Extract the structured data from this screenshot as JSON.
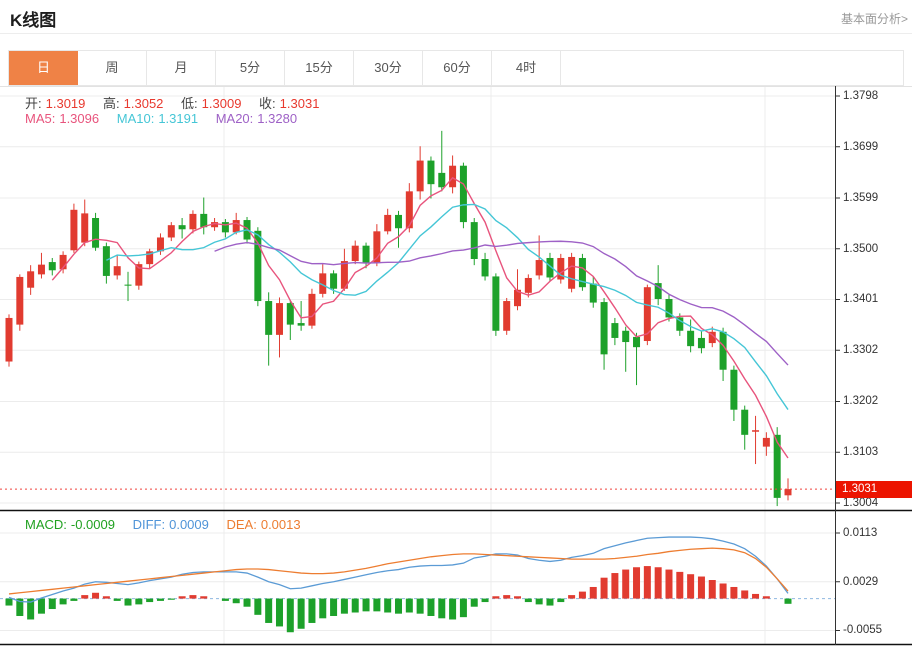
{
  "header": {
    "title": "K线图",
    "link_label": "基本面分析>"
  },
  "tabs": {
    "items": [
      "日",
      "周",
      "月",
      "5分",
      "15分",
      "30分",
      "60分",
      "4时"
    ],
    "active_index": 0
  },
  "kline_legend": {
    "open_label": "开:",
    "open_value": "1.3019",
    "high_label": "高:",
    "high_value": "1.3052",
    "low_label": "低:",
    "low_value": "1.3009",
    "close_label": "收:",
    "close_value": "1.3031"
  },
  "ma_legend": {
    "ma5_label": "MA5:",
    "ma5_value": "1.3096",
    "ma10_label": "MA10:",
    "ma10_value": "1.3191",
    "ma20_label": "MA20:",
    "ma20_value": "1.3280"
  },
  "macd_legend": {
    "macd_label": "MACD:",
    "macd_value": "-0.0009",
    "diff_label": "DIFF:",
    "diff_value": "0.0009",
    "dea_label": "DEA:",
    "dea_value": "0.0013"
  },
  "price_axis": {
    "tick_labels": [
      "1.3798",
      "1.3699",
      "1.3599",
      "1.3500",
      "1.3401",
      "1.3302",
      "1.3202",
      "1.3103",
      "1.3004"
    ],
    "current_price_label": "1.3031"
  },
  "macd_axis": {
    "tick_labels": [
      "0.0113",
      "0.0029",
      "-0.0055"
    ]
  },
  "colors": {
    "up": "#e13b30",
    "down": "#1da12a",
    "ma5": "#e8547d",
    "ma10": "#45c6d6",
    "ma20": "#9e61c6",
    "diff": "#5b9bd5",
    "dea": "#ed7d31",
    "accent_tab": "#ef8246",
    "price_badge": "#ec1400",
    "dotted_line": "#f0433e",
    "grid": "#ececec",
    "axis": "#333333",
    "separator": "#111111",
    "zero_dash": "#8fb8e0"
  },
  "chart_data": [
    {
      "type": "candlestick",
      "title": "K线图 (日K)",
      "ylabel": "price",
      "ylim": [
        1.2988,
        1.382
      ],
      "y_ticks": [
        1.3798,
        1.3699,
        1.3599,
        1.35,
        1.3401,
        1.3302,
        1.3202,
        1.3103,
        1.3004
      ],
      "current_price": 1.3031,
      "ma_periods": [
        5,
        10,
        20
      ],
      "last_ohlc": {
        "open": 1.3019,
        "high": 1.3052,
        "low": 1.3009,
        "close": 1.3031
      },
      "ma_last": {
        "ma5": 1.3096,
        "ma10": 1.3191,
        "ma20": 1.328
      },
      "candles": [
        [
          1.328,
          1.3372,
          1.327,
          1.3365
        ],
        [
          1.3352,
          1.345,
          1.334,
          1.3445
        ],
        [
          1.3424,
          1.3468,
          1.341,
          1.3456
        ],
        [
          1.345,
          1.3492,
          1.3442,
          1.3469
        ],
        [
          1.3474,
          1.3482,
          1.3448,
          1.3458
        ],
        [
          1.346,
          1.3495,
          1.3452,
          1.3488
        ],
        [
          1.3497,
          1.3588,
          1.3492,
          1.3576
        ],
        [
          1.3512,
          1.3596,
          1.3505,
          1.3569
        ],
        [
          1.356,
          1.357,
          1.3496,
          1.3502
        ],
        [
          1.3505,
          1.3512,
          1.3432,
          1.3447
        ],
        [
          1.3448,
          1.3488,
          1.344,
          1.3466
        ],
        [
          1.343,
          1.3455,
          1.3398,
          1.3428
        ],
        [
          1.3428,
          1.3475,
          1.342,
          1.347
        ],
        [
          1.347,
          1.35,
          1.3462,
          1.3495
        ],
        [
          1.3495,
          1.353,
          1.3488,
          1.3522
        ],
        [
          1.3522,
          1.3552,
          1.3515,
          1.3546
        ],
        [
          1.3546,
          1.356,
          1.352,
          1.3538
        ],
        [
          1.3538,
          1.3575,
          1.353,
          1.3568
        ],
        [
          1.3568,
          1.36,
          1.3528,
          1.3542
        ],
        [
          1.3542,
          1.356,
          1.3535,
          1.3552
        ],
        [
          1.3552,
          1.3558,
          1.3522,
          1.3532
        ],
        [
          1.3532,
          1.357,
          1.3528,
          1.3556
        ],
        [
          1.3556,
          1.3562,
          1.351,
          1.3518
        ],
        [
          1.3535,
          1.3542,
          1.3388,
          1.3398
        ],
        [
          1.3398,
          1.3415,
          1.3272,
          1.3332
        ],
        [
          1.3332,
          1.3405,
          1.3288,
          1.3394
        ],
        [
          1.3394,
          1.34,
          1.3322,
          1.3352
        ],
        [
          1.3355,
          1.3398,
          1.334,
          1.335
        ],
        [
          1.335,
          1.3422,
          1.3344,
          1.3412
        ],
        [
          1.3412,
          1.347,
          1.3405,
          1.3452
        ],
        [
          1.3452,
          1.3458,
          1.3412,
          1.3422
        ],
        [
          1.3422,
          1.35,
          1.3418,
          1.3476
        ],
        [
          1.3476,
          1.3516,
          1.347,
          1.3506
        ],
        [
          1.3506,
          1.3512,
          1.3462,
          1.3472
        ],
        [
          1.3472,
          1.3548,
          1.3466,
          1.3534
        ],
        [
          1.3534,
          1.3578,
          1.3528,
          1.3566
        ],
        [
          1.3566,
          1.3574,
          1.3502,
          1.354
        ],
        [
          1.354,
          1.3628,
          1.3532,
          1.3612
        ],
        [
          1.3612,
          1.37,
          1.3596,
          1.3672
        ],
        [
          1.3672,
          1.368,
          1.3598,
          1.3626
        ],
        [
          1.3648,
          1.373,
          1.3612,
          1.362
        ],
        [
          1.362,
          1.3682,
          1.3608,
          1.3662
        ],
        [
          1.3662,
          1.3668,
          1.354,
          1.3552
        ],
        [
          1.3552,
          1.356,
          1.3468,
          1.348
        ],
        [
          1.348,
          1.3492,
          1.3438,
          1.3446
        ],
        [
          1.3446,
          1.3452,
          1.333,
          1.334
        ],
        [
          1.334,
          1.3404,
          1.3332,
          1.3398
        ],
        [
          1.3388,
          1.346,
          1.338,
          1.342
        ],
        [
          1.3414,
          1.345,
          1.3405,
          1.3443
        ],
        [
          1.3448,
          1.3526,
          1.344,
          1.3478
        ],
        [
          1.3482,
          1.3492,
          1.3436,
          1.3444
        ],
        [
          1.344,
          1.349,
          1.3432,
          1.3482
        ],
        [
          1.3422,
          1.3492,
          1.3415,
          1.3484
        ],
        [
          1.3482,
          1.349,
          1.3418,
          1.3425
        ],
        [
          1.3432,
          1.3445,
          1.3385,
          1.3395
        ],
        [
          1.3396,
          1.3404,
          1.3264,
          1.3294
        ],
        [
          1.3355,
          1.3365,
          1.3312,
          1.3326
        ],
        [
          1.334,
          1.3348,
          1.326,
          1.3318
        ],
        [
          1.3328,
          1.3336,
          1.3234,
          1.3308
        ],
        [
          1.332,
          1.343,
          1.3312,
          1.3425
        ],
        [
          1.3433,
          1.3468,
          1.339,
          1.3402
        ],
        [
          1.3402,
          1.3412,
          1.3358,
          1.3366
        ],
        [
          1.3366,
          1.3374,
          1.333,
          1.334
        ],
        [
          1.334,
          1.3362,
          1.3298,
          1.331
        ],
        [
          1.3326,
          1.334,
          1.3296,
          1.3306
        ],
        [
          1.3316,
          1.3348,
          1.3308,
          1.3338
        ],
        [
          1.3338,
          1.3346,
          1.3242,
          1.3264
        ],
        [
          1.3264,
          1.3272,
          1.3164,
          1.3186
        ],
        [
          1.3186,
          1.3194,
          1.3108,
          1.3137
        ],
        [
          1.3143,
          1.3174,
          1.308,
          1.3146
        ],
        [
          1.3114,
          1.3142,
          1.3096,
          1.3131
        ],
        [
          1.3137,
          1.3152,
          1.2998,
          1.3014
        ],
        [
          1.3019,
          1.3052,
          1.3009,
          1.3031
        ]
      ]
    },
    {
      "type": "macd",
      "title": "MACD(12,26,9)",
      "ylim": [
        -0.0077,
        0.015
      ],
      "y_ticks": [
        0.0113,
        0.0029,
        -0.0055
      ],
      "series": [
        {
          "name": "DIFF",
          "values": [
            0.0002,
            -0.0005,
            -0.0006,
            0.0001,
            0.0007,
            0.0013,
            0.0018,
            0.0025,
            0.0029,
            0.0028,
            0.0026,
            0.0024,
            0.0027,
            0.0031,
            0.0034,
            0.0037,
            0.0042,
            0.0045,
            0.0046,
            0.0046,
            0.0046,
            0.0046,
            0.0044,
            0.0037,
            0.0029,
            0.0024,
            0.0017,
            0.0018,
            0.0022,
            0.0026,
            0.0029,
            0.0033,
            0.0037,
            0.0041,
            0.0045,
            0.0048,
            0.005,
            0.0054,
            0.0056,
            0.0057,
            0.0057,
            0.0058,
            0.0061,
            0.007,
            0.0073,
            0.0077,
            0.0077,
            0.0075,
            0.0069,
            0.0066,
            0.0064,
            0.0066,
            0.0071,
            0.0074,
            0.0078,
            0.0086,
            0.0091,
            0.0096,
            0.01,
            0.0104,
            0.0105,
            0.0106,
            0.0106,
            0.0106,
            0.0105,
            0.0103,
            0.0099,
            0.0094,
            0.0086,
            0.0073,
            0.0056,
            0.0034,
            0.0009
          ]
        },
        {
          "name": "DEA",
          "values": [
            0.0008,
            0.001,
            0.0012,
            0.0014,
            0.0016,
            0.0018,
            0.002,
            0.0022,
            0.0024,
            0.0026,
            0.0028,
            0.003,
            0.0032,
            0.0034,
            0.0036,
            0.0038,
            0.004,
            0.0042,
            0.0044,
            0.0046,
            0.0048,
            0.005,
            0.0051,
            0.0051,
            0.005,
            0.0048,
            0.0046,
            0.0044,
            0.0043,
            0.0043,
            0.0044,
            0.0046,
            0.0049,
            0.0052,
            0.0056,
            0.006,
            0.0063,
            0.0066,
            0.0069,
            0.0072,
            0.0074,
            0.0076,
            0.0077,
            0.0077,
            0.0076,
            0.0075,
            0.0074,
            0.0073,
            0.0072,
            0.0071,
            0.007,
            0.0069,
            0.0068,
            0.0068,
            0.0068,
            0.0068,
            0.0069,
            0.0071,
            0.0073,
            0.0076,
            0.0078,
            0.0081,
            0.0083,
            0.0085,
            0.0086,
            0.0087,
            0.0086,
            0.0084,
            0.0079,
            0.0069,
            0.0054,
            0.0034,
            0.0013
          ]
        },
        {
          "name": "MACD_hist",
          "values": [
            -0.0012,
            -0.003,
            -0.0036,
            -0.0026,
            -0.0018,
            -0.001,
            -0.0004,
            0.0006,
            0.001,
            0.0004,
            -0.0004,
            -0.0012,
            -0.001,
            -0.0006,
            -0.0004,
            -0.0002,
            0.0004,
            0.0006,
            0.0004,
            0.0,
            -0.0004,
            -0.0008,
            -0.0014,
            -0.0028,
            -0.0042,
            -0.0048,
            -0.0058,
            -0.0052,
            -0.0042,
            -0.0034,
            -0.003,
            -0.0026,
            -0.0024,
            -0.0022,
            -0.0022,
            -0.0024,
            -0.0026,
            -0.0024,
            -0.0026,
            -0.003,
            -0.0034,
            -0.0036,
            -0.0032,
            -0.0014,
            -0.0006,
            0.0004,
            0.0006,
            0.0004,
            -0.0006,
            -0.001,
            -0.0012,
            -0.0006,
            0.0006,
            0.0012,
            0.002,
            0.0036,
            0.0044,
            0.005,
            0.0054,
            0.0056,
            0.0054,
            0.005,
            0.0046,
            0.0042,
            0.0038,
            0.0032,
            0.0026,
            0.002,
            0.0014,
            0.0008,
            0.0004,
            0.0,
            -0.0009
          ]
        }
      ]
    }
  ]
}
